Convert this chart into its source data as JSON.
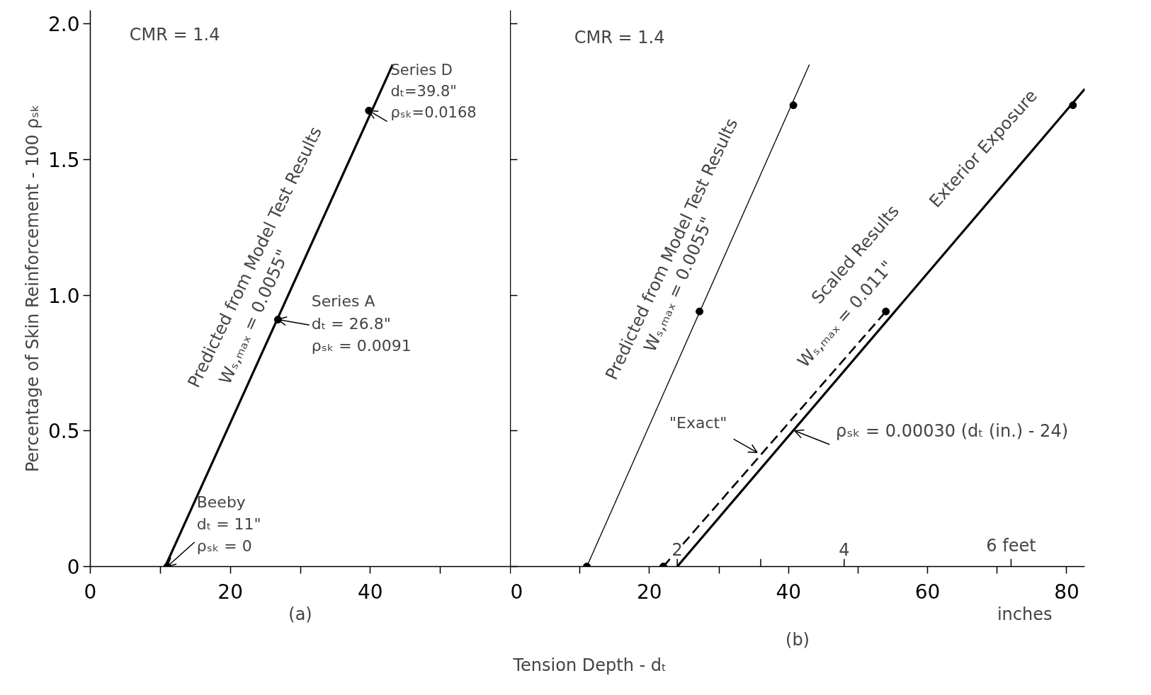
{
  "chart_data": [
    {
      "type": "line",
      "xlim": [
        0,
        60
      ],
      "ylim": [
        0,
        2.05
      ],
      "xticks": [
        0,
        {
          "value": 10,
          "label": null
        },
        20,
        {
          "value": 30,
          "label": null
        },
        40,
        {
          "value": 50,
          "label": null
        }
      ],
      "yticks": [
        0,
        0.5,
        {
          "value": 1,
          "label": "1.0"
        },
        1.5,
        {
          "value": 2,
          "label": "2.0"
        }
      ],
      "ylabel": "Percentage of Skin Reinforcement - 100 ρₛₖ",
      "series": [
        {
          "type": "line",
          "color": "#000000",
          "x": [
            10.7,
            43.2
          ],
          "values": [
            0,
            1.85
          ]
        },
        {
          "type": "scatter",
          "marker": "circle",
          "color": "#000000",
          "x": [
            11,
            26.8,
            39.8
          ],
          "values": [
            0,
            0.91,
            1.68
          ]
        }
      ],
      "annotations": [
        "CMR = 1.4",
        "Predicted from Model Test Results",
        "Wₛ,ₘₐₓ = 0.0055\"",
        {
          "text": "Series D\ndₜ=39.8\"\nρₛₖ=0.0168",
          "x": 39.8,
          "y": 1.68
        },
        {
          "text": "Series A\ndₜ = 26.8\"\nρₛₖ = 0.0091",
          "x": 26.8,
          "y": 0.91
        },
        {
          "text": "Beeby\ndₜ = 11\"\nρₛₖ = 0",
          "x": 11,
          "y": 0
        },
        "(a)"
      ]
    },
    {
      "type": "line",
      "xlim": [
        0,
        82.6
      ],
      "ylim": [
        0,
        2.05
      ],
      "tick_labels": "x",
      "xticks": [
        0,
        {
          "value": 10,
          "label": null
        },
        20,
        {
          "value": 30,
          "label": null
        },
        40,
        {
          "value": 50,
          "label": null
        },
        60,
        {
          "value": 70,
          "label": null
        },
        80
      ],
      "yticks": [
        0,
        0.5,
        1,
        1.5,
        2
      ],
      "x2lim": [
        0,
        6.883
      ],
      "x2ticks": [
        2,
        {
          "value": 3,
          "label": null
        },
        4,
        {
          "value": 6,
          "label": "6 feet"
        }
      ],
      "xlabel": "Tension Depth - dₜ",
      "series": [
        {
          "type": "line",
          "color": "#000000",
          "x": [
            11,
            43
          ],
          "values": [
            0,
            1.85
          ]
        },
        {
          "type": "scatter",
          "marker": "circle",
          "color": "#000000",
          "x": [
            11,
            27.2,
            40.7
          ],
          "values": [
            0,
            0.94,
            1.7
          ]
        },
        {
          "type": "line",
          "color": "#000000",
          "x": [
            24,
            82.6
          ],
          "values": [
            0,
            1.76
          ]
        },
        {
          "type": "line",
          "line_style": "dashed",
          "color": "#000000",
          "x": [
            22,
            54
          ],
          "values": [
            0,
            0.94
          ]
        },
        {
          "type": "scatter",
          "marker": "circle",
          "color": "#000000",
          "x": [
            22,
            54,
            80.9
          ],
          "values": [
            0,
            0.94,
            1.7
          ]
        }
      ],
      "annotations": [
        "CMR = 1.4",
        "Predicted from Model Test Results",
        "Wₛ,ₘₐₓ = 0.0055\"",
        "Scaled Results",
        "Wₛ,ₘₐₓ = 0.011\"",
        "Exterior Exposure",
        {
          "text": "\"Exact\"",
          "x": 35.5,
          "y": 0.42
        },
        {
          "text": "ρₛₖ = 0.00030 (dₜ (in.) - 24)",
          "x": 40.9,
          "y": 0.5
        },
        "(b)",
        "inches"
      ]
    }
  ]
}
